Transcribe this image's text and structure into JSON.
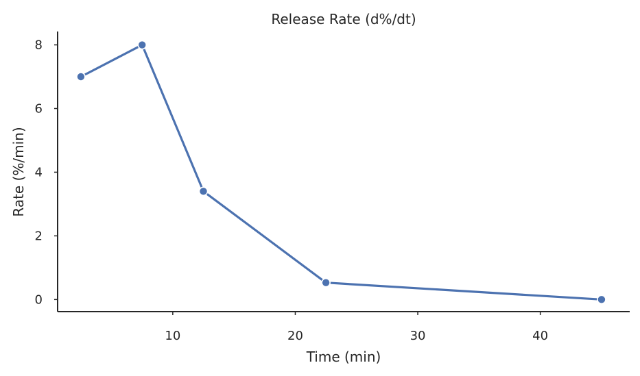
{
  "chart_data": {
    "type": "line",
    "title": "Release Rate (d%/dt)",
    "xlabel": "Time (min)",
    "ylabel": "Rate (%/min)",
    "xlim": [
      0.6,
      47.3
    ],
    "ylim": [
      -0.38,
      8.42
    ],
    "xticks": [
      10,
      20,
      30,
      40
    ],
    "yticks": [
      0,
      2,
      4,
      6,
      8
    ],
    "grid": false,
    "series": [
      {
        "color": "#4c72b0",
        "x": [
          2.5,
          7.5,
          12.5,
          22.5,
          45
        ],
        "values": [
          7.0,
          8.0,
          3.4,
          0.53,
          0.0
        ]
      }
    ]
  }
}
